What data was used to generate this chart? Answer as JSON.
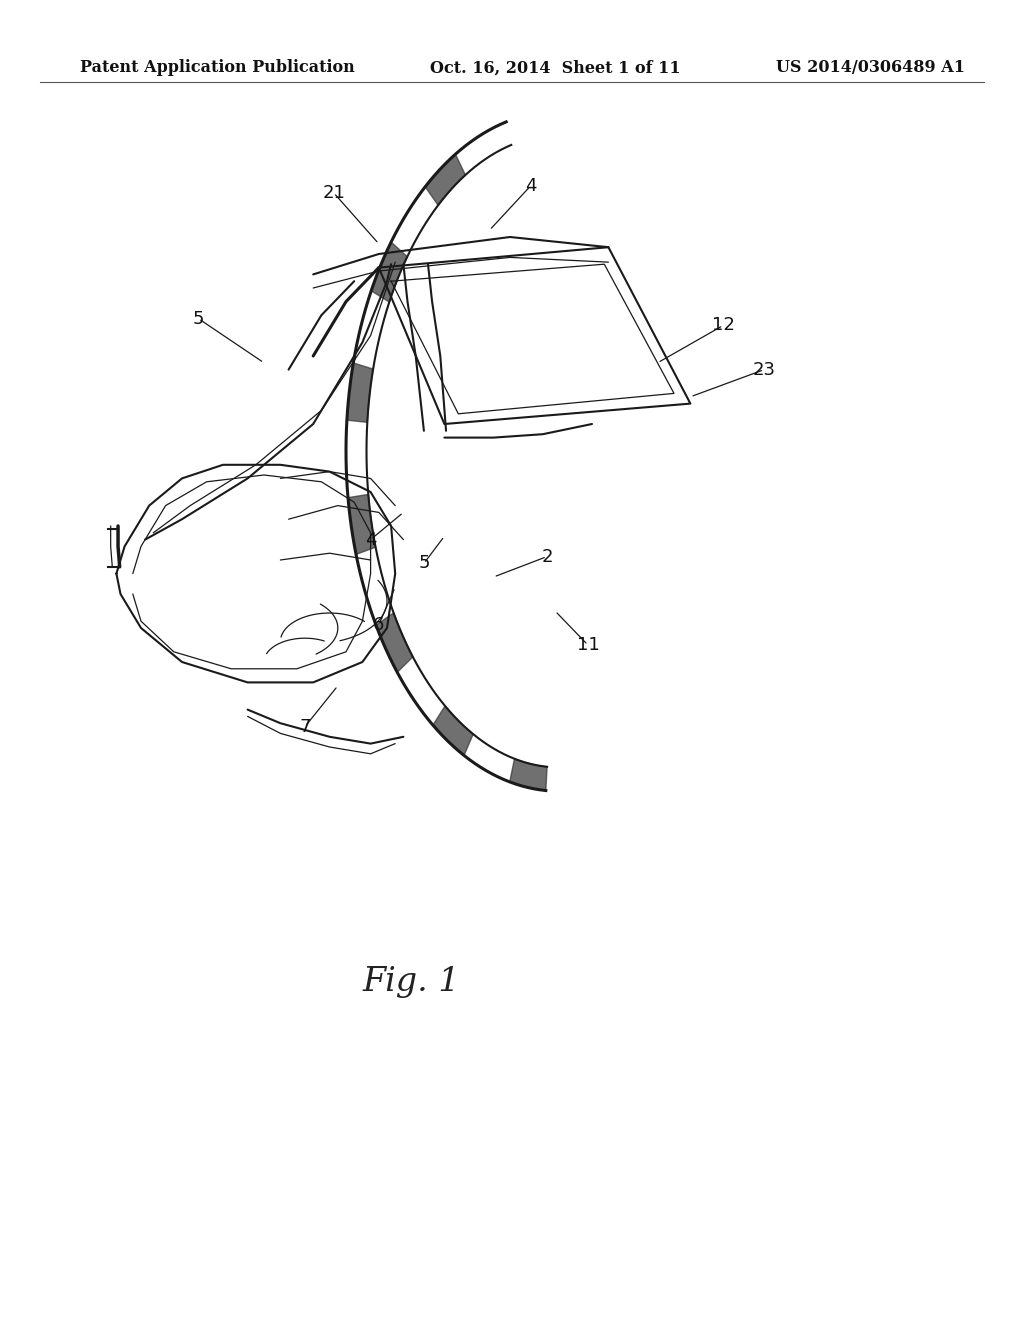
{
  "background_color": "#ffffff",
  "header_left": "Patent Application Publication",
  "header_center": "Oct. 16, 2014  Sheet 1 of 11",
  "header_right": "US 2014/0306489 A1",
  "header_fontsize": 11.5,
  "fig_label": "Fig. 1",
  "fig_label_fontsize": 24,
  "label_fontsize": 13,
  "line_color": "#1a1a1a",
  "labels": [
    {
      "text": "21",
      "nx": 0.285,
      "ny": -0.04,
      "adx": 0.055,
      "ady": 0.075
    },
    {
      "text": "4",
      "nx": 0.525,
      "ny": -0.05,
      "adx": -0.05,
      "ady": 0.065
    },
    {
      "text": "5",
      "nx": 0.12,
      "ny": 0.145,
      "adx": 0.08,
      "ady": 0.065
    },
    {
      "text": "12",
      "nx": 0.76,
      "ny": 0.155,
      "adx": -0.08,
      "ady": 0.055
    },
    {
      "text": "23",
      "nx": 0.81,
      "ny": 0.22,
      "adx": -0.09,
      "ady": 0.04
    },
    {
      "text": "4",
      "nx": 0.33,
      "ny": 0.47,
      "adx": 0.04,
      "ady": -0.04
    },
    {
      "text": "5",
      "nx": 0.395,
      "ny": 0.505,
      "adx": 0.025,
      "ady": -0.04
    },
    {
      "text": "2",
      "nx": 0.545,
      "ny": 0.495,
      "adx": -0.065,
      "ady": 0.03
    },
    {
      "text": "6",
      "nx": 0.34,
      "ny": 0.595,
      "adx": 0.02,
      "ady": -0.055
    },
    {
      "text": "7",
      "nx": 0.25,
      "ny": 0.745,
      "adx": 0.04,
      "ady": -0.06
    },
    {
      "text": "11",
      "nx": 0.595,
      "ny": 0.625,
      "adx": -0.04,
      "ady": -0.05
    }
  ]
}
